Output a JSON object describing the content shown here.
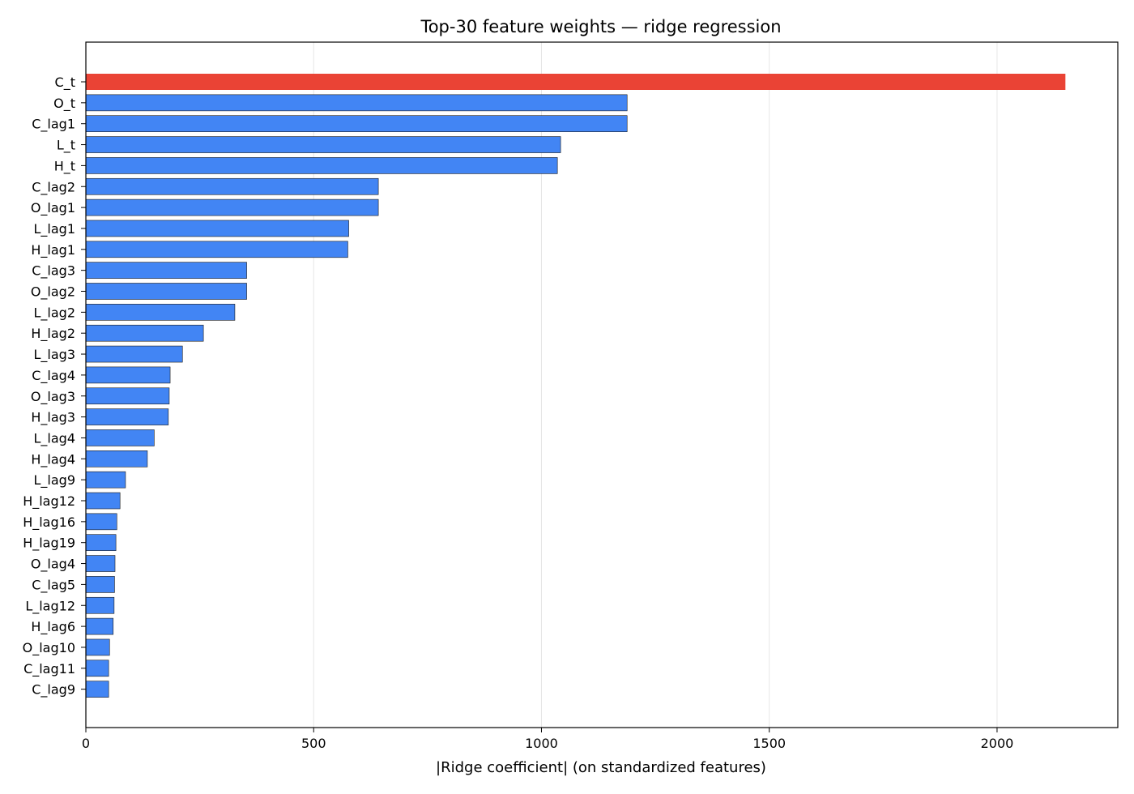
{
  "chart_data": {
    "type": "bar",
    "orientation": "horizontal",
    "title": "Top-30 feature weights — ridge regression",
    "xlabel": "|Ridge coefficient| (on standardized features)",
    "ylabel": "",
    "xlim": [
      0,
      2265
    ],
    "xticks": [
      0,
      500,
      1000,
      1500,
      2000
    ],
    "grid": "vertical",
    "legend": "none",
    "colors": {
      "highlight": "#EA4335",
      "bar": "#4285F4",
      "edge": "#1a1a1a",
      "grid": "#e6e6e6"
    },
    "categories": [
      "C_t",
      "O_t",
      "C_lag1",
      "L_t",
      "H_t",
      "C_lag2",
      "O_lag1",
      "L_lag1",
      "H_lag1",
      "C_lag3",
      "O_lag2",
      "L_lag2",
      "H_lag2",
      "L_lag3",
      "C_lag4",
      "O_lag3",
      "H_lag3",
      "L_lag4",
      "H_lag4",
      "L_lag9",
      "H_lag12",
      "H_lag16",
      "H_lag19",
      "O_lag4",
      "C_lag5",
      "L_lag12",
      "H_lag6",
      "O_lag10",
      "C_lag11",
      "C_lag9"
    ],
    "values": [
      2150,
      1188,
      1188,
      1042,
      1035,
      642,
      642,
      577,
      575,
      353,
      353,
      327,
      258,
      212,
      185,
      183,
      181,
      150,
      135,
      87,
      75,
      68,
      66,
      64,
      63,
      62,
      60,
      52,
      50,
      50
    ],
    "highlight_index": 0
  }
}
